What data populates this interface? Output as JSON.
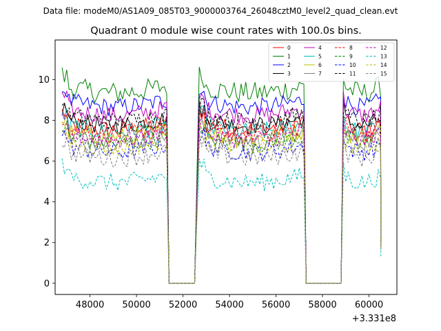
{
  "chart_data": {
    "type": "line",
    "suptitle": "Data file: modeM0/AS1A09_085T03_9000003764_26048cztM0_level2_quad_clean.evt",
    "title": "Quadrant 0 module wise count rates with 100.0s bins.",
    "xlabel": "",
    "ylabel": "",
    "x_offset_label": "+3.331e8",
    "xlim": [
      46500,
      61200
    ],
    "ylim": [
      -0.55,
      11.95
    ],
    "xticks": [
      48000,
      50000,
      52000,
      54000,
      56000,
      58000,
      60000
    ],
    "xtick_labels": [
      "48000",
      "50000",
      "52000",
      "54000",
      "56000",
      "58000",
      "60000"
    ],
    "yticks": [
      0,
      2,
      4,
      6,
      8,
      10
    ],
    "ytick_labels": [
      "0",
      "2",
      "4",
      "6",
      "8",
      "10"
    ],
    "legend_position": "top-right",
    "segments": [
      {
        "start": 46800,
        "end": 51300
      },
      {
        "start": 52700,
        "end": 57200
      },
      {
        "start": 58900,
        "end": 60500
      }
    ],
    "gap_zero_ranges": [
      [
        51400,
        52500
      ],
      [
        57300,
        58800
      ]
    ],
    "bin_seconds": 100,
    "series": [
      {
        "name": "0",
        "color": "#ff0000",
        "style": "solid",
        "mean": 7.9
      },
      {
        "name": "1",
        "color": "#008000",
        "style": "solid",
        "mean": 9.7
      },
      {
        "name": "2",
        "color": "#0000ff",
        "style": "solid",
        "mean": 9.0
      },
      {
        "name": "3",
        "color": "#000000",
        "style": "solid",
        "mean": 8.1
      },
      {
        "name": "4",
        "color": "#bf00bf",
        "style": "solid",
        "mean": 8.6
      },
      {
        "name": "5",
        "color": "#00bfbf",
        "style": "solid",
        "mean": 7.8
      },
      {
        "name": "6",
        "color": "#bfbf00",
        "style": "solid",
        "mean": 7.5
      },
      {
        "name": "7",
        "color": "#808080",
        "style": "solid",
        "mean": 7.3
      },
      {
        "name": "8",
        "color": "#ff0000",
        "style": "dashed",
        "mean": 7.7
      },
      {
        "name": "9",
        "color": "#008000",
        "style": "dashed",
        "mean": 7.2
      },
      {
        "name": "10",
        "color": "#0000ff",
        "style": "dashed",
        "mean": 6.8
      },
      {
        "name": "11",
        "color": "#000000",
        "style": "dashed",
        "mean": 8.3
      },
      {
        "name": "12",
        "color": "#bf00bf",
        "style": "dashed",
        "mean": 7.4
      },
      {
        "name": "13",
        "color": "#00bfbf",
        "style": "dashed",
        "mean": 5.3
      },
      {
        "name": "14",
        "color": "#bfbf00",
        "style": "dashed",
        "mean": 7.0
      },
      {
        "name": "15",
        "color": "#808080",
        "style": "dashed",
        "mean": 6.5
      }
    ]
  }
}
